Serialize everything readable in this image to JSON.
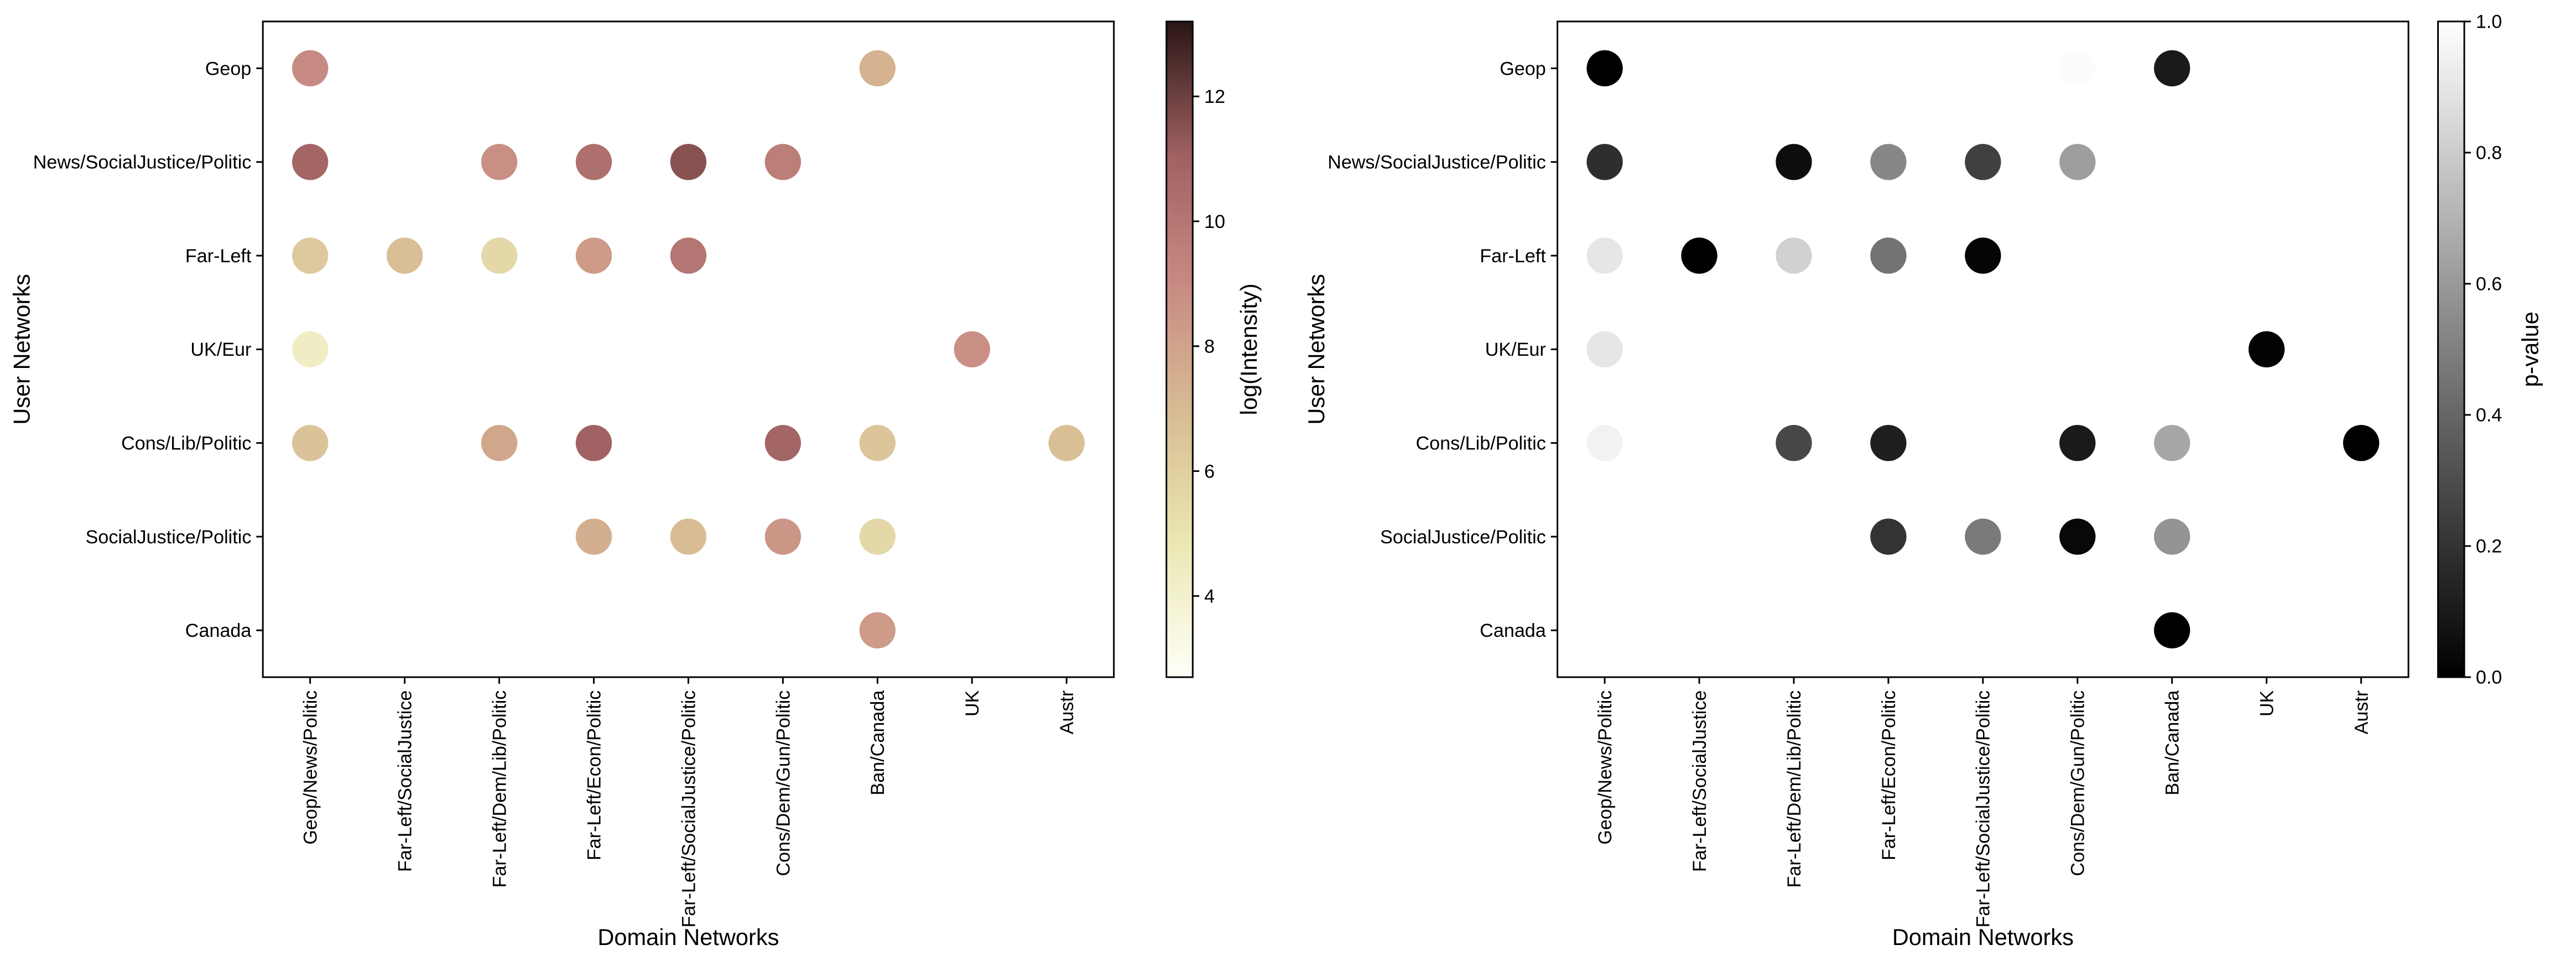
{
  "chart_data": [
    {
      "type": "scatter",
      "xlabel": "Domain Networks",
      "ylabel": "User Networks",
      "x_categories": [
        "Geop/News/Politic",
        "Far-Left/SocialJustice",
        "Far-Left/Dem/Lib/Politic",
        "Far-Left/Econ/Politic",
        "Far-Left/SocialJustice/Politic",
        "Cons/Dem/Gun/Politic",
        "Ban/Canada",
        "UK",
        "Austr"
      ],
      "y_categories": [
        "Geop",
        "News/SocialJustice/Politic",
        "Far-Left",
        "UK/Eur",
        "Cons/Lib/Politic",
        "SocialJustice/Politic",
        "Canada"
      ],
      "colorbar": {
        "label": "log(Intensity)",
        "range": [
          2.7,
          13.2
        ],
        "ticks": [
          4,
          6,
          8,
          10,
          12
        ],
        "tick_labels": [
          "4",
          "6",
          "8",
          "10",
          "12"
        ],
        "colormap": [
          "#fffff8",
          "#ebe8b4",
          "#d8bd94",
          "#c78a82",
          "#9e6060",
          "#2a1515"
        ]
      },
      "points": [
        {
          "y": "Geop",
          "x": "Geop/News/Politic",
          "value": 9.0
        },
        {
          "y": "Geop",
          "x": "Ban/Canada",
          "value": 7.3
        },
        {
          "y": "News/SocialJustice/Politic",
          "x": "Geop/News/Politic",
          "value": 10.8
        },
        {
          "y": "News/SocialJustice/Politic",
          "x": "Far-Left/Dem/Lib/Politic",
          "value": 8.8
        },
        {
          "y": "News/SocialJustice/Politic",
          "x": "Far-Left/Econ/Politic",
          "value": 10.3
        },
        {
          "y": "News/SocialJustice/Politic",
          "x": "Far-Left/SocialJustice/Politic",
          "value": 11.5
        },
        {
          "y": "News/SocialJustice/Politic",
          "x": "Cons/Dem/Gun/Politic",
          "value": 9.6
        },
        {
          "y": "Far-Left",
          "x": "Geop/News/Politic",
          "value": 6.3
        },
        {
          "y": "Far-Left",
          "x": "Far-Left/SocialJustice",
          "value": 6.8
        },
        {
          "y": "Far-Left",
          "x": "Far-Left/Dem/Lib/Politic",
          "value": 5.6
        },
        {
          "y": "Far-Left",
          "x": "Far-Left/Econ/Politic",
          "value": 8.3
        },
        {
          "y": "Far-Left",
          "x": "Far-Left/SocialJustice/Politic",
          "value": 10.0
        },
        {
          "y": "UK/Eur",
          "x": "Geop/News/Politic",
          "value": 4.3
        },
        {
          "y": "UK/Eur",
          "x": "UK",
          "value": 8.8
        },
        {
          "y": "Cons/Lib/Politic",
          "x": "Geop/News/Politic",
          "value": 6.6
        },
        {
          "y": "Cons/Lib/Politic",
          "x": "Far-Left/Dem/Lib/Politic",
          "value": 7.8
        },
        {
          "y": "Cons/Lib/Politic",
          "x": "Far-Left/Econ/Politic",
          "value": 11.0
        },
        {
          "y": "Cons/Lib/Politic",
          "x": "Cons/Dem/Gun/Politic",
          "value": 10.8
        },
        {
          "y": "Cons/Lib/Politic",
          "x": "Ban/Canada",
          "value": 6.5
        },
        {
          "y": "Cons/Lib/Politic",
          "x": "Austr",
          "value": 6.8
        },
        {
          "y": "SocialJustice/Politic",
          "x": "Far-Left/Econ/Politic",
          "value": 7.5
        },
        {
          "y": "SocialJustice/Politic",
          "x": "Far-Left/SocialJustice/Politic",
          "value": 6.9
        },
        {
          "y": "SocialJustice/Politic",
          "x": "Cons/Dem/Gun/Politic",
          "value": 8.5
        },
        {
          "y": "SocialJustice/Politic",
          "x": "Ban/Canada",
          "value": 5.6
        },
        {
          "y": "Canada",
          "x": "Ban/Canada",
          "value": 8.3
        }
      ]
    },
    {
      "type": "scatter",
      "xlabel": "Domain Networks",
      "ylabel": "User Networks",
      "x_categories": [
        "Geop/News/Politic",
        "Far-Left/SocialJustice",
        "Far-Left/Dem/Lib/Politic",
        "Far-Left/Econ/Politic",
        "Far-Left/SocialJustice/Politic",
        "Cons/Dem/Gun/Politic",
        "Ban/Canada",
        "UK",
        "Austr"
      ],
      "y_categories": [
        "Geop",
        "News/SocialJustice/Politic",
        "Far-Left",
        "UK/Eur",
        "Cons/Lib/Politic",
        "SocialJustice/Politic",
        "Canada"
      ],
      "colorbar": {
        "label": "p-value",
        "range": [
          0,
          1
        ],
        "ticks": [
          0,
          0.2,
          0.4,
          0.6,
          0.8,
          1.0
        ],
        "tick_labels": [
          "0.0",
          "0.2",
          "0.4",
          "0.6",
          "0.8",
          "1.0"
        ],
        "colormap": [
          "#000000",
          "#ffffff"
        ]
      },
      "points": [
        {
          "y": "Geop",
          "x": "Geop/News/Politic",
          "value": 0.0
        },
        {
          "y": "Geop",
          "x": "Cons/Dem/Gun/Politic",
          "value": 0.99
        },
        {
          "y": "Geop",
          "x": "Ban/Canada",
          "value": 0.1
        },
        {
          "y": "News/SocialJustice/Politic",
          "x": "Geop/News/Politic",
          "value": 0.18
        },
        {
          "y": "News/SocialJustice/Politic",
          "x": "Far-Left/Dem/Lib/Politic",
          "value": 0.05
        },
        {
          "y": "News/SocialJustice/Politic",
          "x": "Far-Left/Econ/Politic",
          "value": 0.53
        },
        {
          "y": "News/SocialJustice/Politic",
          "x": "Far-Left/SocialJustice/Politic",
          "value": 0.25
        },
        {
          "y": "News/SocialJustice/Politic",
          "x": "Cons/Dem/Gun/Politic",
          "value": 0.62
        },
        {
          "y": "Far-Left",
          "x": "Geop/News/Politic",
          "value": 0.9
        },
        {
          "y": "Far-Left",
          "x": "Far-Left/SocialJustice",
          "value": 0.0
        },
        {
          "y": "Far-Left",
          "x": "Far-Left/Dem/Lib/Politic",
          "value": 0.82
        },
        {
          "y": "Far-Left",
          "x": "Far-Left/Econ/Politic",
          "value": 0.45
        },
        {
          "y": "Far-Left",
          "x": "Far-Left/SocialJustice/Politic",
          "value": 0.02
        },
        {
          "y": "UK/Eur",
          "x": "Geop/News/Politic",
          "value": 0.9
        },
        {
          "y": "UK/Eur",
          "x": "UK",
          "value": 0.01
        },
        {
          "y": "Cons/Lib/Politic",
          "x": "Geop/News/Politic",
          "value": 0.95
        },
        {
          "y": "Cons/Lib/Politic",
          "x": "Far-Left/Dem/Lib/Politic",
          "value": 0.28
        },
        {
          "y": "Cons/Lib/Politic",
          "x": "Far-Left/Econ/Politic",
          "value": 0.12
        },
        {
          "y": "Cons/Lib/Politic",
          "x": "Cons/Dem/Gun/Politic",
          "value": 0.1
        },
        {
          "y": "Cons/Lib/Politic",
          "x": "Ban/Canada",
          "value": 0.65
        },
        {
          "y": "Cons/Lib/Politic",
          "x": "Austr",
          "value": 0.0
        },
        {
          "y": "SocialJustice/Politic",
          "x": "Far-Left/Econ/Politic",
          "value": 0.2
        },
        {
          "y": "SocialJustice/Politic",
          "x": "Far-Left/SocialJustice/Politic",
          "value": 0.48
        },
        {
          "y": "SocialJustice/Politic",
          "x": "Cons/Dem/Gun/Politic",
          "value": 0.03
        },
        {
          "y": "SocialJustice/Politic",
          "x": "Ban/Canada",
          "value": 0.58
        },
        {
          "y": "Canada",
          "x": "Ban/Canada",
          "value": 0.0
        }
      ]
    }
  ]
}
